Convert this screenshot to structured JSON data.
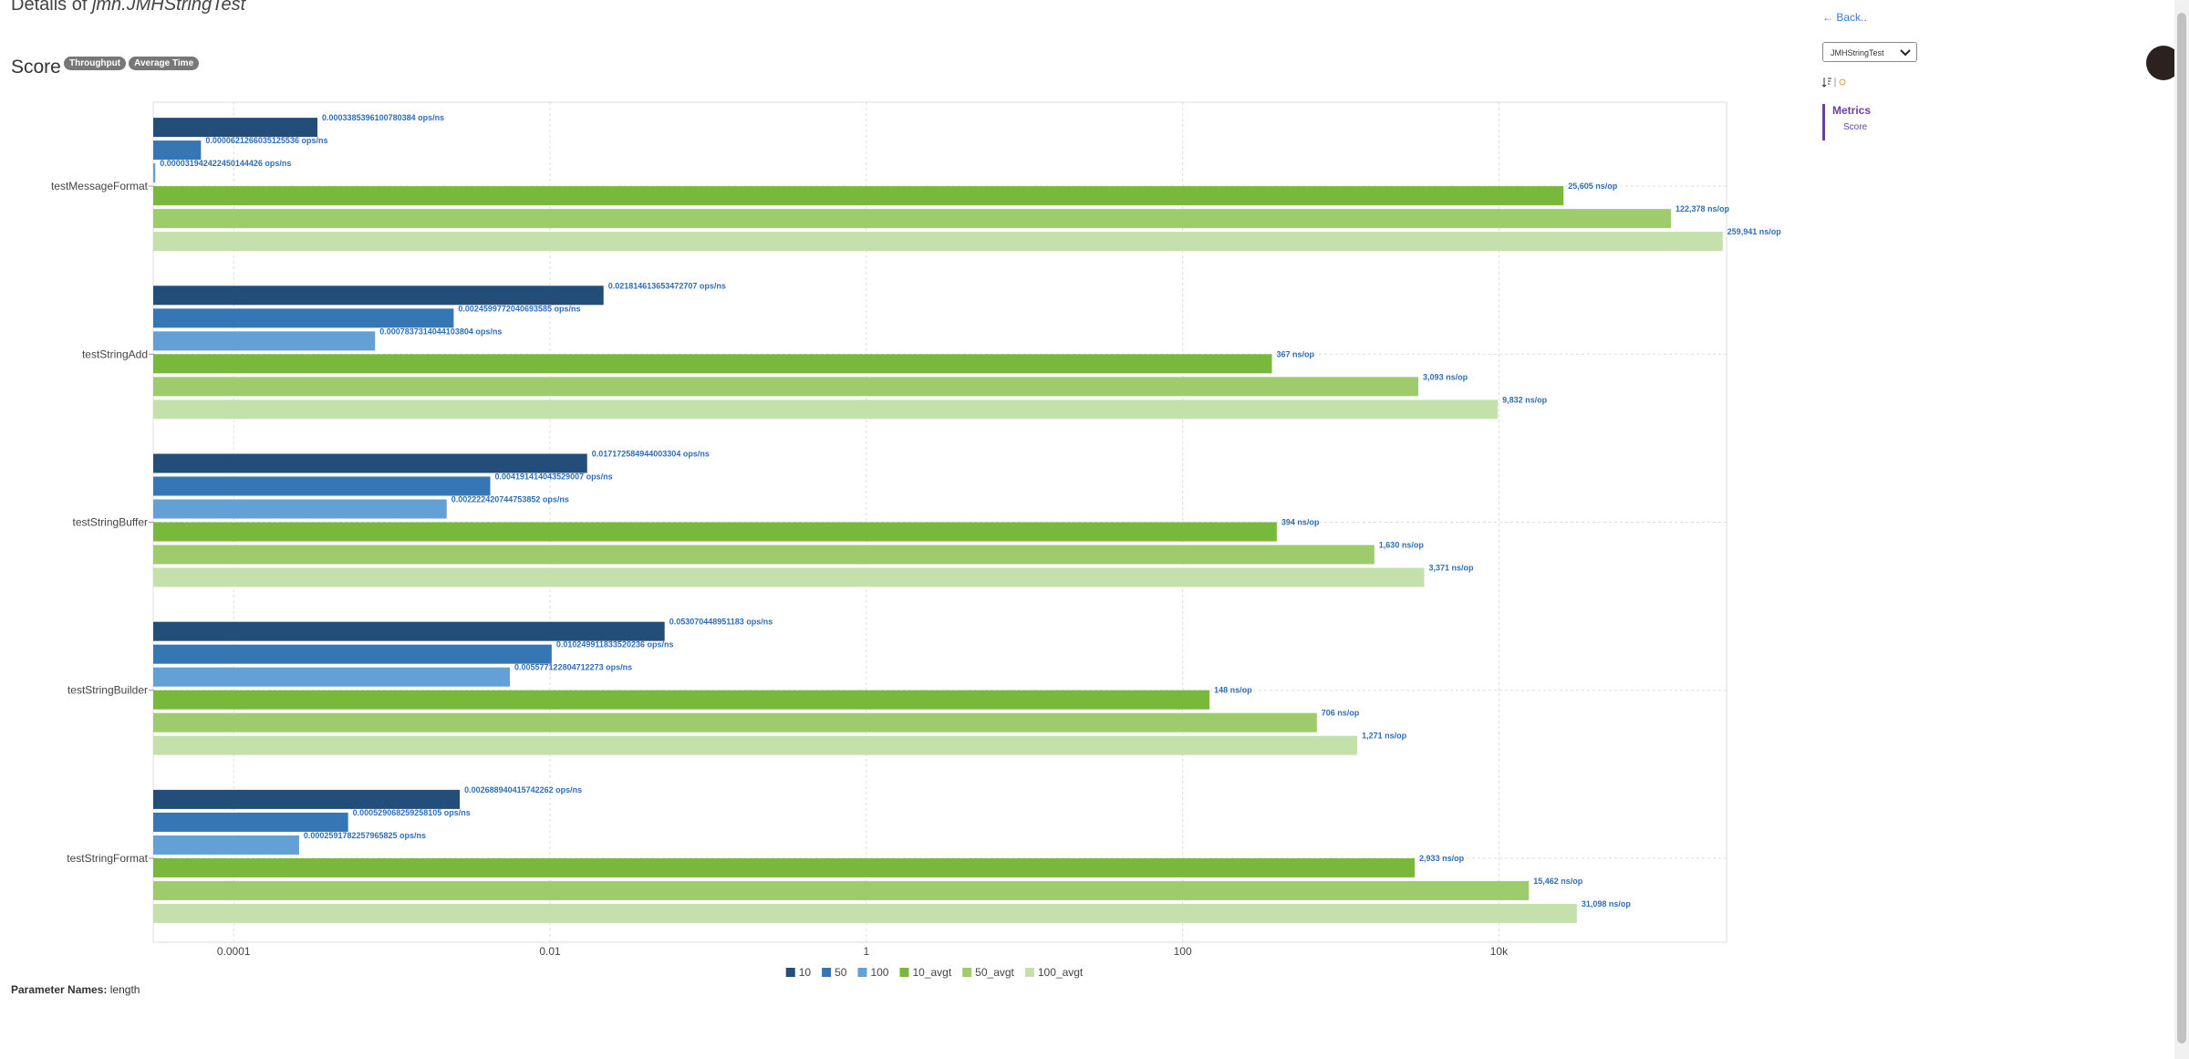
{
  "header": {
    "title_prefix": "Details of",
    "title_name": "jmh.JMHStringTest",
    "score_label": "Score",
    "badges": [
      "Throughput",
      "Average Time"
    ]
  },
  "parameters": {
    "label": "Parameter Names:",
    "value": "length"
  },
  "sidebar": {
    "back": "← Back..",
    "select": "JMHStringTest",
    "nav_title": "Metrics",
    "nav_item": "Score"
  },
  "chart_data": {
    "type": "bar",
    "orientation": "horizontal",
    "xscale": "log",
    "grid": true,
    "categories": [
      "testMessageFormat",
      "testStringAdd",
      "testStringBuffer",
      "testStringBuilder",
      "testStringFormat"
    ],
    "xlim": [
      3.1e-05,
      275000
    ],
    "xticks": [
      0.0001,
      0.01,
      1,
      100,
      {
        "value": 10000,
        "label": "10k"
      }
    ],
    "series": [
      {
        "name": "10",
        "color": "#234e79",
        "values": [
          0.0003385396100780384,
          0.021814613653472707,
          0.017172584944003304,
          0.053070448951183,
          0.002688940415742262
        ],
        "value_labels": [
          "0.0003385396100780384 ops/ns",
          "0.021814613653472707 ops/ns",
          "0.017172584944003304 ops/ns",
          "0.053070448951183 ops/ns",
          "0.002688940415742262 ops/ns"
        ]
      },
      {
        "name": "50",
        "color": "#3776b5",
        "values": [
          6.21266035125536e-05,
          0.0024599772040693585,
          0.004191414043529007,
          0.010249911833520236,
          0.000529068259258105
        ],
        "value_labels": [
          "0.0000621266035125536 ops/ns",
          "0.0024599772040693585 ops/ns",
          "0.004191414043529007 ops/ns",
          "0.010249911833520236 ops/ns",
          "0.000529068259258105 ops/ns"
        ]
      },
      {
        "name": "100",
        "color": "#62a0d6",
        "values": [
          3.1942422450144426e-05,
          0.0007837314044103804,
          0.002222420744753852,
          0.005577122804712273,
          0.0002591782257965825
        ],
        "value_labels": [
          "0.000031942422450144426 ops/ns",
          "0.0007837314044103804 ops/ns",
          "0.002222420744753852 ops/ns",
          "0.005577122804712273 ops/ns",
          "0.0002591782257965825 ops/ns"
        ]
      },
      {
        "name": "10_avgt",
        "color": "#78b83a",
        "values": [
          25605,
          367,
          394,
          148,
          2933
        ],
        "value_labels": [
          "25,605 ns/op",
          "367 ns/op",
          "394 ns/op",
          "148 ns/op",
          "2,933 ns/op"
        ]
      },
      {
        "name": "50_avgt",
        "color": "#9ecb6b",
        "values": [
          122378,
          3093,
          1630,
          706,
          15462
        ],
        "value_labels": [
          "122,378 ns/op",
          "3,093 ns/op",
          "1,630 ns/op",
          "706 ns/op",
          "15,462 ns/op"
        ]
      },
      {
        "name": "100_avgt",
        "color": "#c5e1ab",
        "values": [
          259941,
          9832,
          3371,
          1271,
          31098
        ],
        "value_labels": [
          "259,941 ns/op",
          "9,832 ns/op",
          "3,371 ns/op",
          "1,271 ns/op",
          "31,098 ns/op"
        ]
      }
    ]
  }
}
